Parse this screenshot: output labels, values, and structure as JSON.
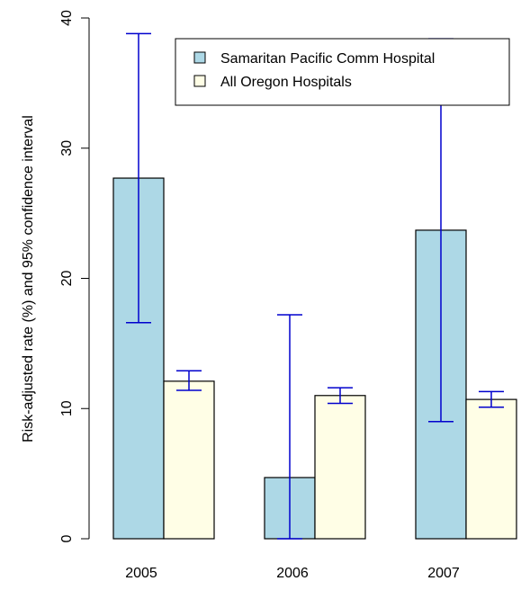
{
  "chart_data": {
    "type": "bar",
    "title": "",
    "xlabel": "",
    "ylabel": "Risk-adjusted rate (%) and 95% confidence interval",
    "ylim": [
      0,
      40
    ],
    "yticks": [
      0,
      10,
      20,
      30,
      40
    ],
    "categories": [
      "2005",
      "2006",
      "2007"
    ],
    "series": [
      {
        "name": "Samaritan Pacific Comm Hospital",
        "color": "#add8e6",
        "values": [
          27.7,
          4.7,
          23.7
        ],
        "ci_low": [
          16.6,
          0.0,
          9.0
        ],
        "ci_high": [
          38.8,
          17.2,
          38.4
        ]
      },
      {
        "name": "All Oregon Hospitals",
        "color": "#fffee6",
        "values": [
          12.1,
          11.0,
          10.7
        ],
        "ci_low": [
          11.4,
          10.4,
          10.1
        ],
        "ci_high": [
          12.9,
          11.6,
          11.3
        ]
      }
    ],
    "error_bar_color": "#0000cd",
    "grid": false,
    "legend_position": "top-right"
  }
}
